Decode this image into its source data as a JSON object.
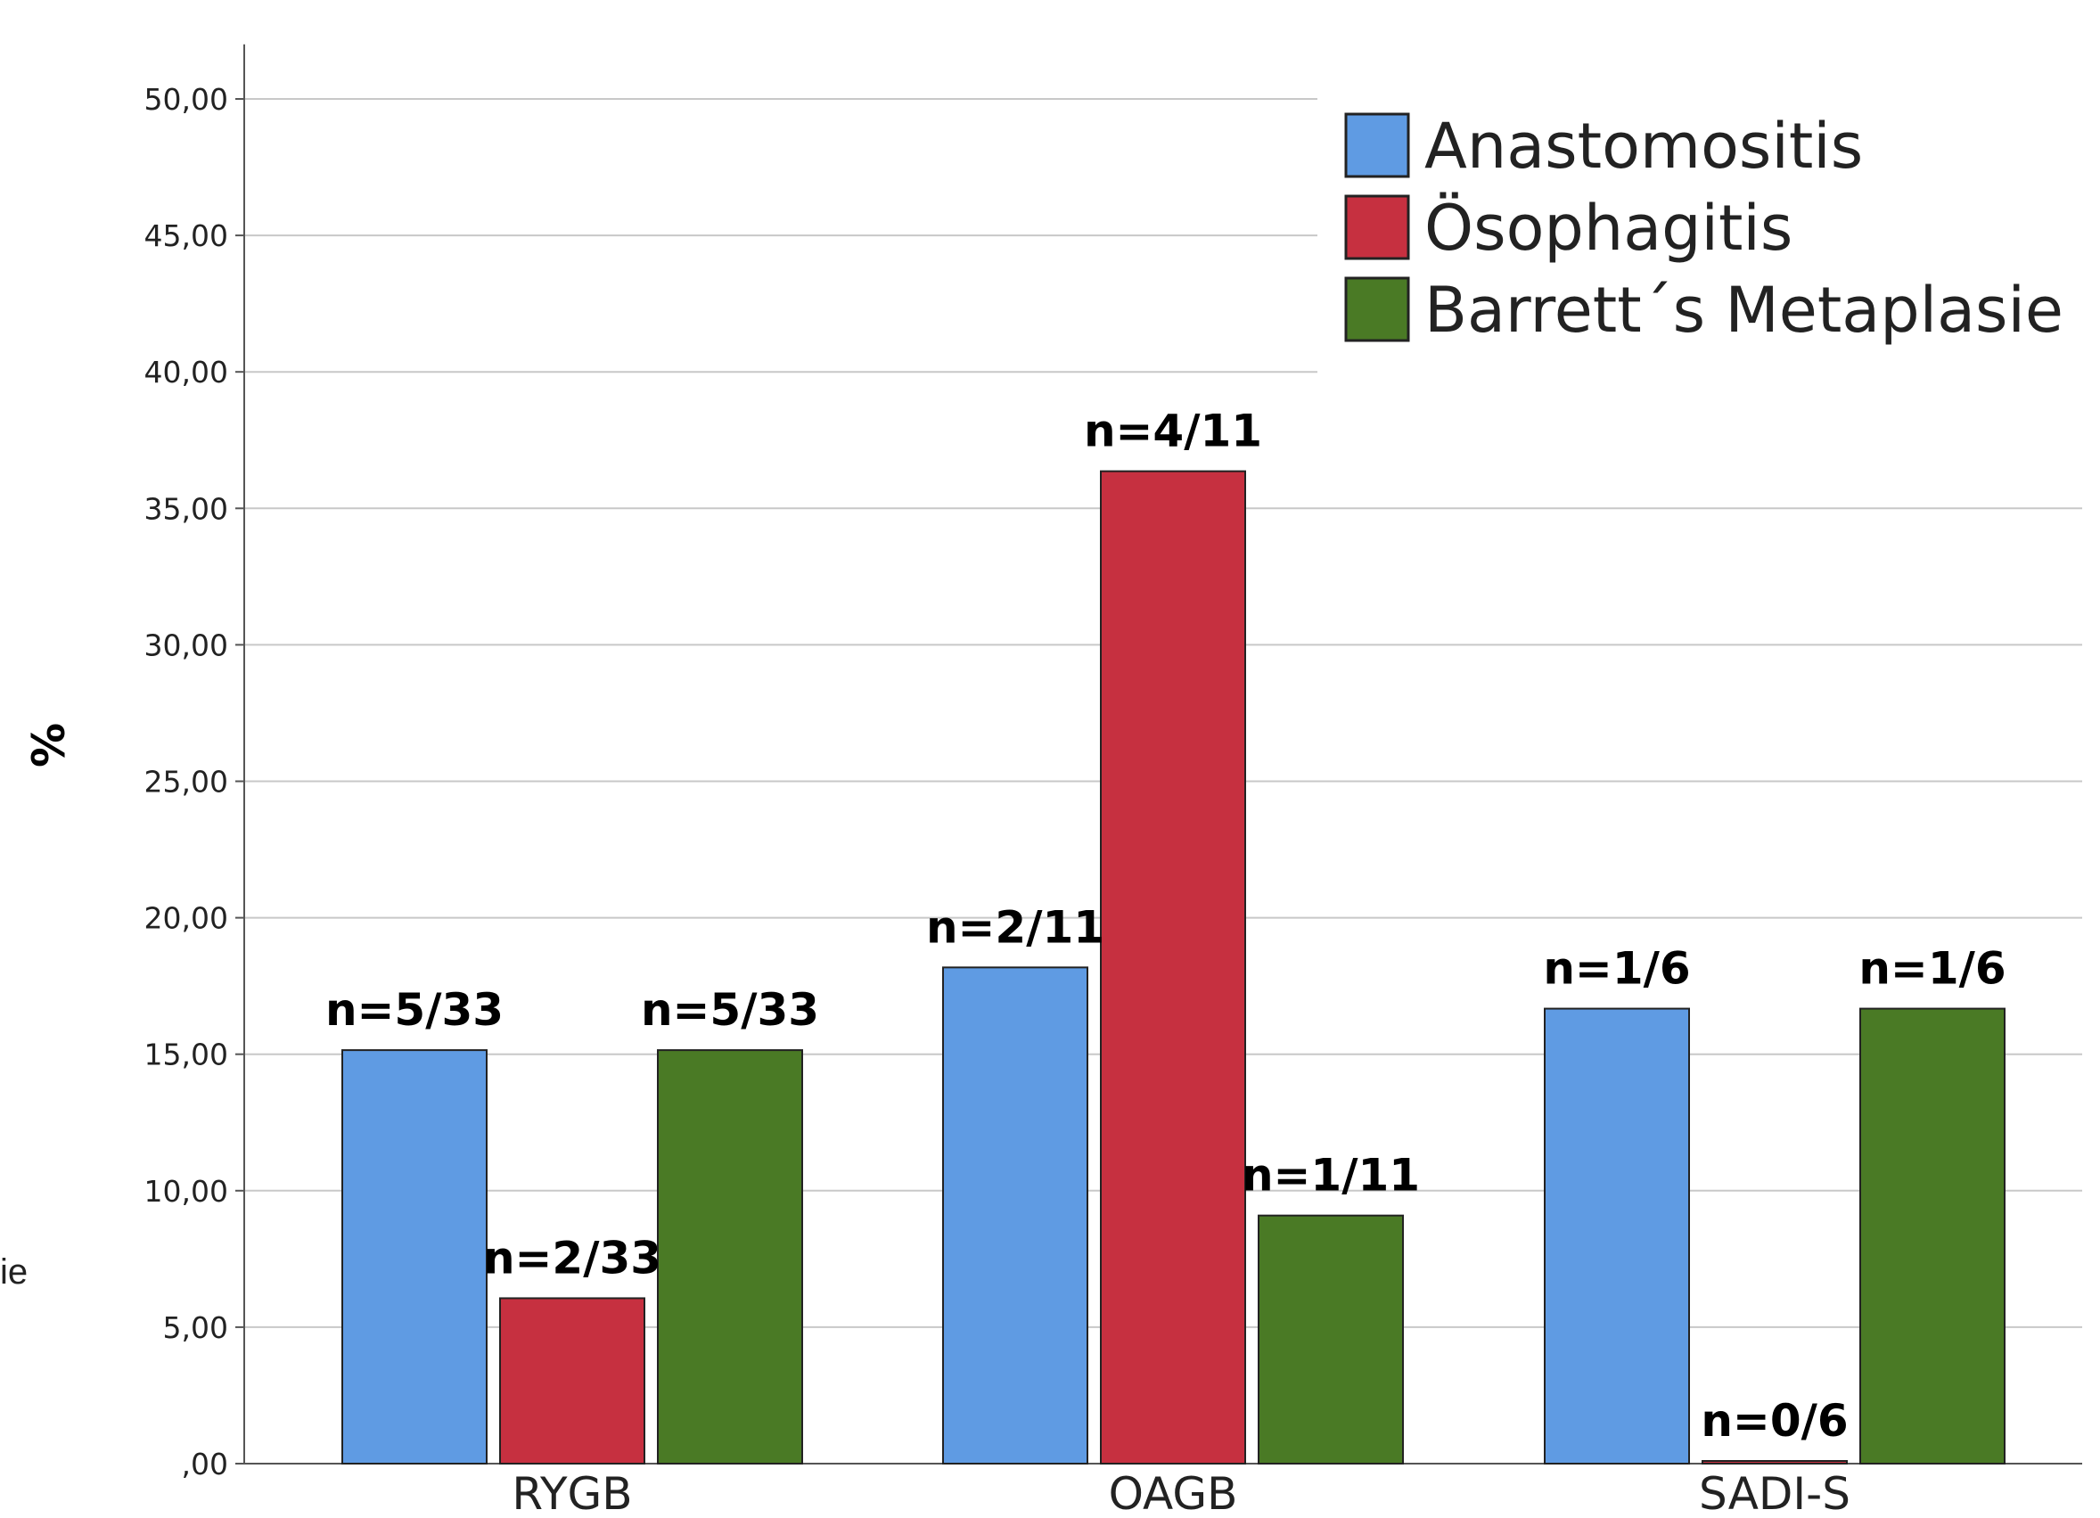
{
  "chart_data": {
    "type": "bar",
    "title": "",
    "xlabel": "",
    "ylabel": "%",
    "ylim": [
      0,
      52
    ],
    "yticks": [
      0,
      5,
      10,
      15,
      20,
      25,
      30,
      35,
      40,
      45,
      50
    ],
    "ytick_labels": [
      ",00",
      "5,00",
      "10,00",
      "15,00",
      "20,00",
      "25,00",
      "30,00",
      "35,00",
      "40,00",
      "45,00",
      "50,00"
    ],
    "grid": true,
    "legend_position": "top-right",
    "categories": [
      "RYGB",
      "OAGB",
      "SADI-S"
    ],
    "series": [
      {
        "name": "Anastomositis",
        "color": "#5f9be3",
        "values": [
          15.15,
          18.18,
          16.67
        ],
        "labels": [
          "n=5/33",
          "n=2/11",
          "n=1/6"
        ]
      },
      {
        "name": "Ösophagitis",
        "color": "#c63040",
        "values": [
          6.06,
          36.36,
          0.0
        ],
        "labels": [
          "n=2/33",
          "n=4/11",
          "n=0/6"
        ]
      },
      {
        "name": "Barrett´s Metaplasie",
        "color": "#4a7a25",
        "values": [
          15.15,
          9.09,
          16.67
        ],
        "labels": [
          "n=5/33",
          "n=1/11",
          "n=1/6"
        ]
      }
    ],
    "side_text": "ie"
  }
}
